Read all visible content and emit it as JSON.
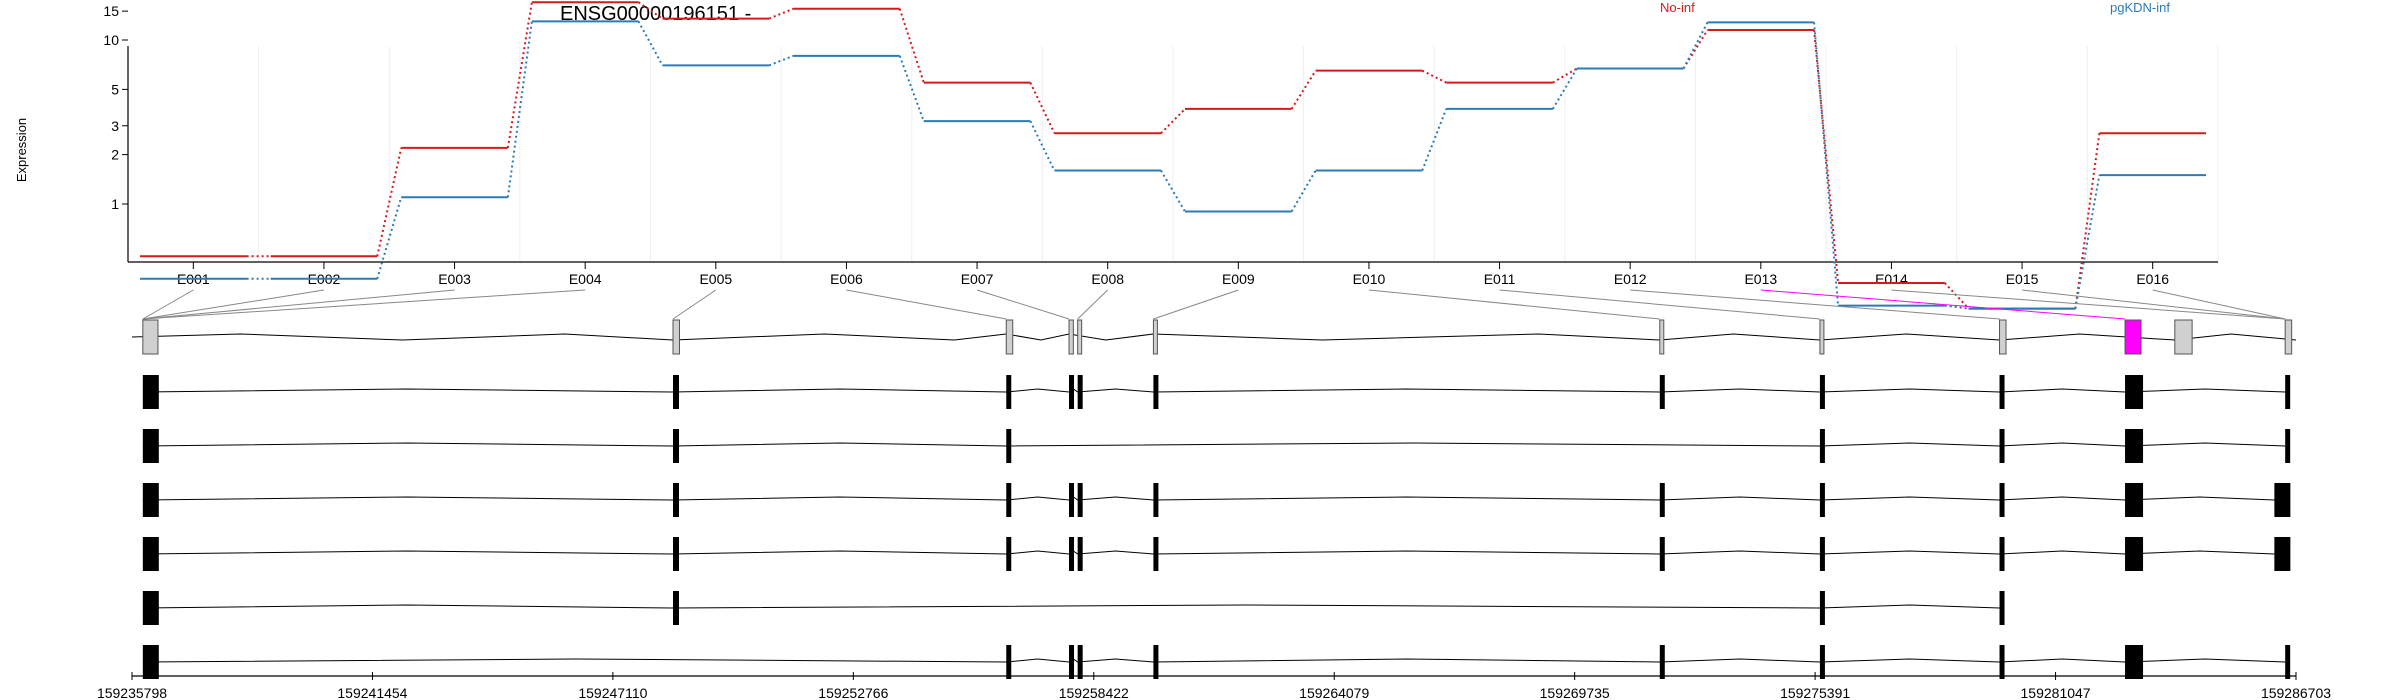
{
  "chart_data": {
    "type": "line",
    "title": "ENSG00000196151 -",
    "ylabel": "Expression",
    "y_scale": "log",
    "y_ticks": [
      "15",
      "10",
      "5",
      "3",
      "2",
      "1"
    ],
    "exon_labels": [
      "E001",
      "E002",
      "E003",
      "E004",
      "E005",
      "E006",
      "E007",
      "E008",
      "E009",
      "E010",
      "E011",
      "E012",
      "E013",
      "E014",
      "E015",
      "E016"
    ],
    "series": [
      {
        "name": "No-inf",
        "color": "#d7191c",
        "values": [
          0.48,
          0.48,
          2.2,
          17.0,
          13.5,
          15.5,
          5.5,
          2.7,
          3.8,
          6.5,
          5.5,
          6.7,
          11.5,
          0.33,
          0.23,
          2.7
        ]
      },
      {
        "name": "pgKDN-inf",
        "color": "#2c7bb6",
        "values": [
          0.35,
          0.35,
          1.1,
          13.0,
          7.0,
          8.0,
          3.2,
          1.6,
          0.9,
          1.6,
          3.8,
          6.7,
          12.8,
          0.24,
          0.23,
          1.5
        ]
      }
    ],
    "genomic_axis": {
      "ticks": [
        "159235798",
        "159241454",
        "159247110",
        "159252766",
        "159258422",
        "159264079",
        "159269735",
        "159275391",
        "159281047",
        "159286703"
      ]
    },
    "highlight_color": "#ff00ff",
    "transcript_count": 6
  }
}
